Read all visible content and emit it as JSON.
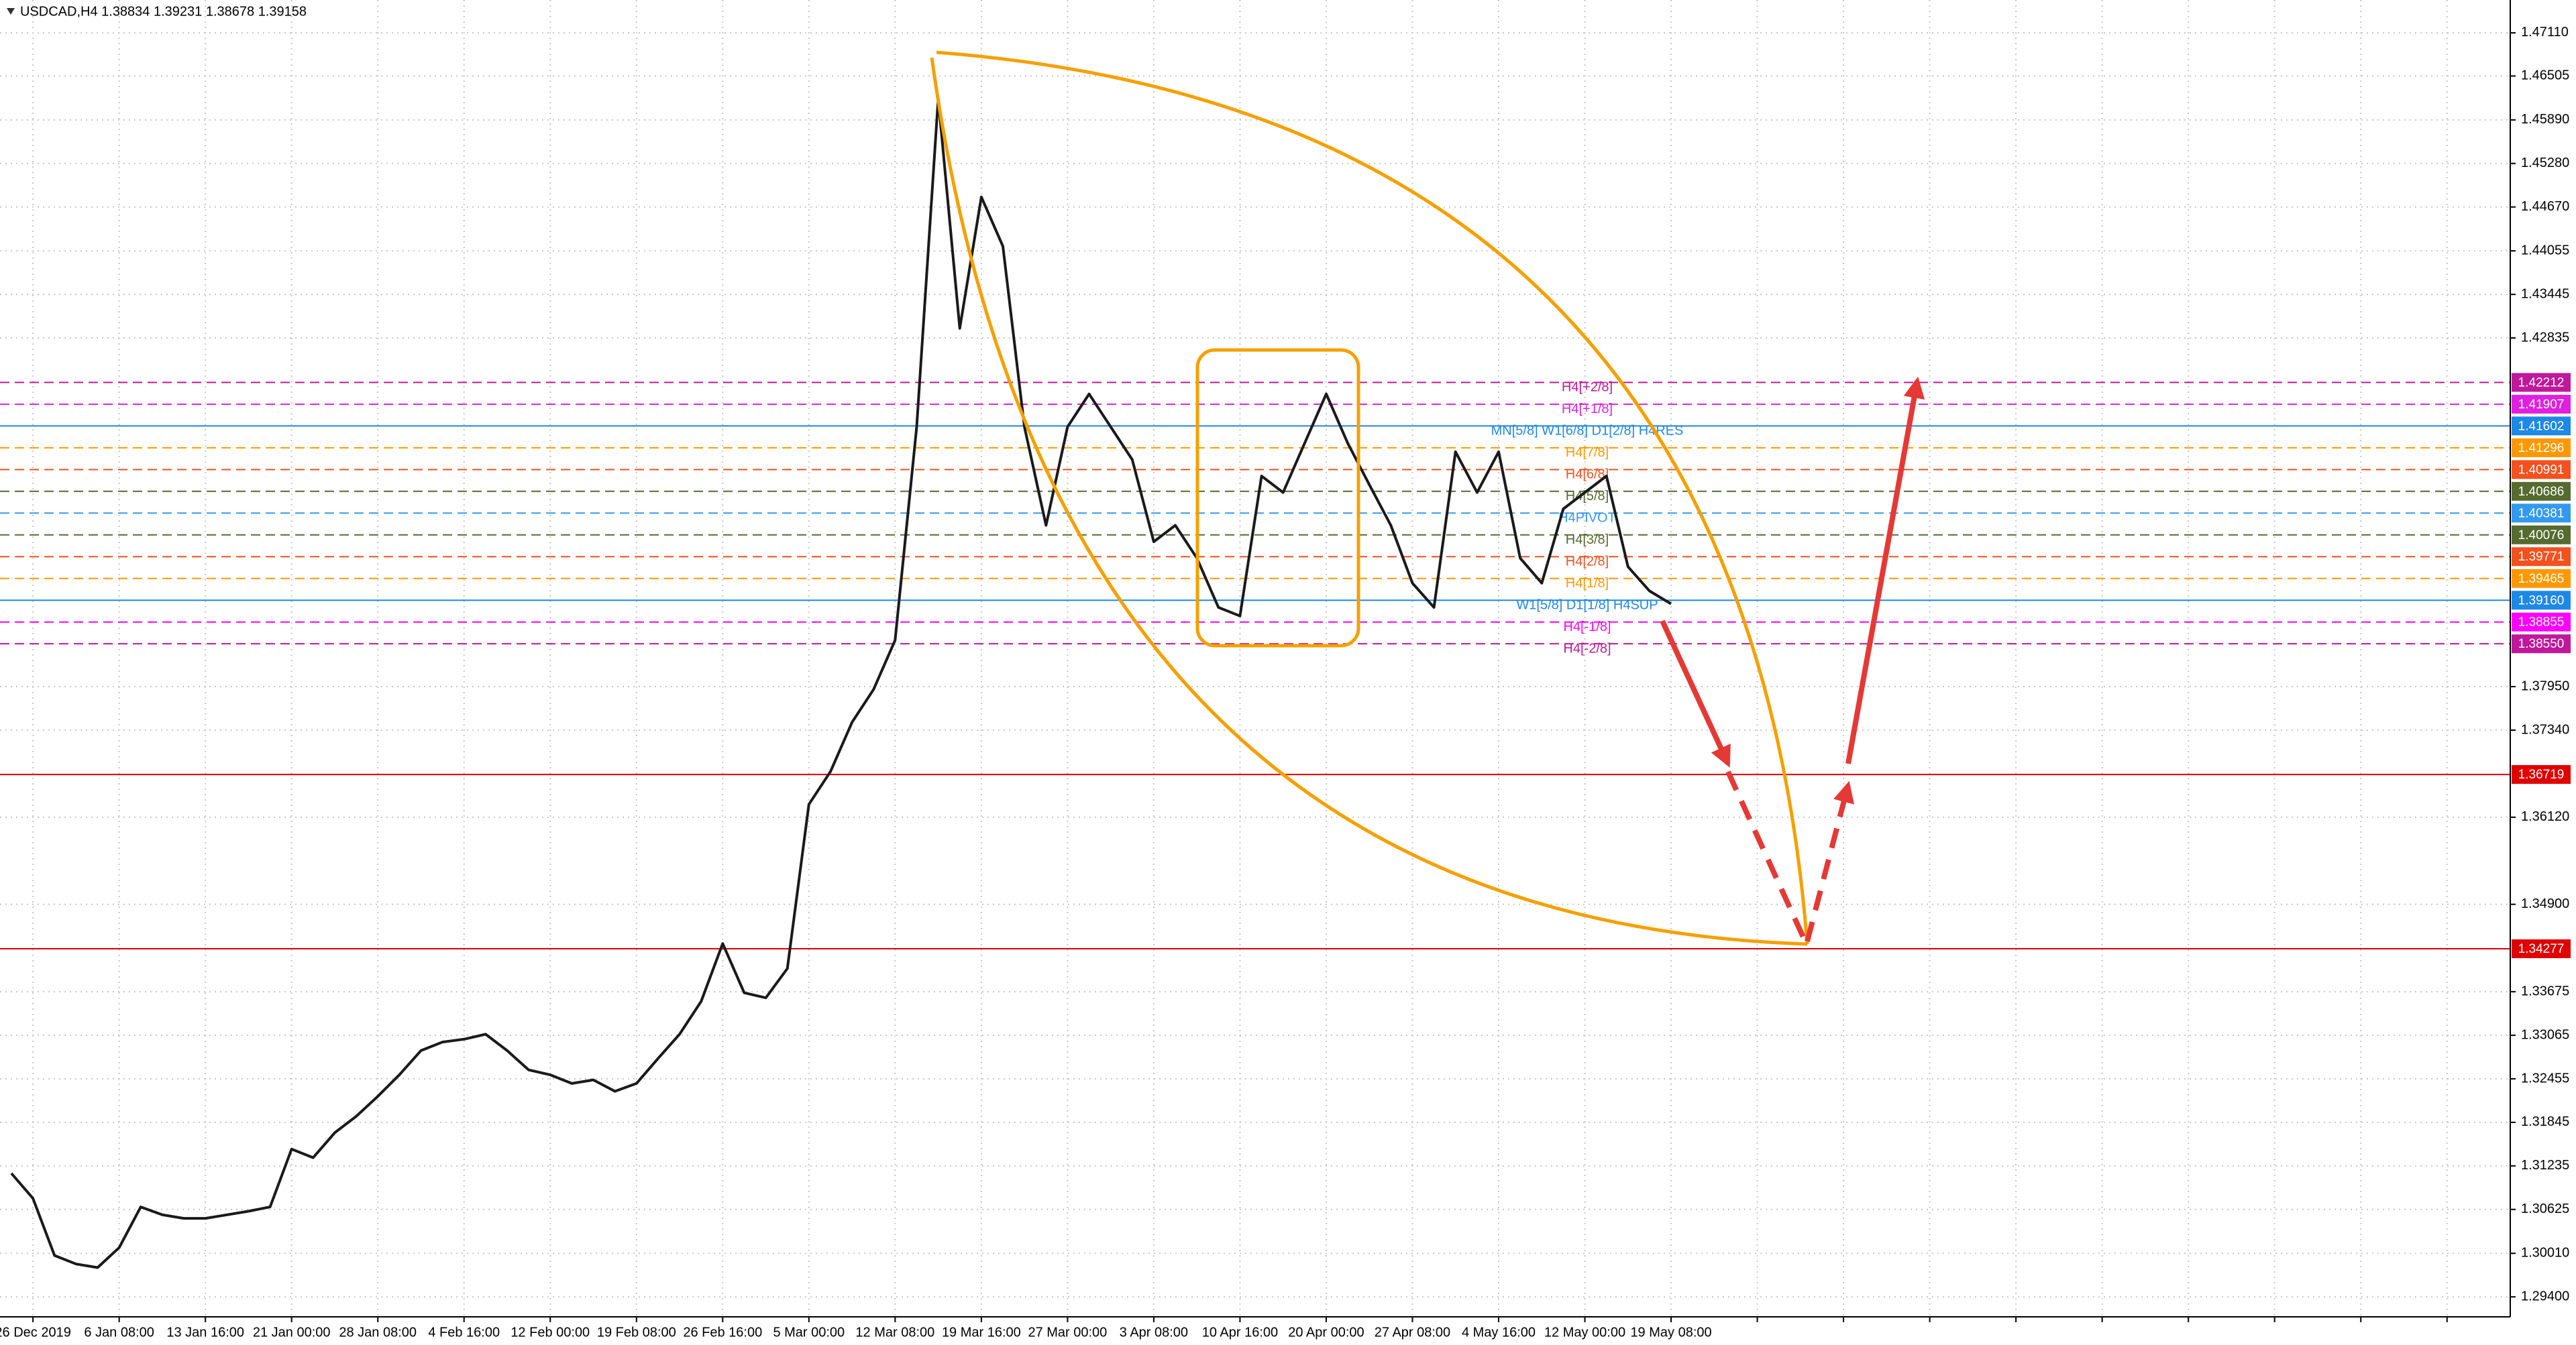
{
  "chart_data": {
    "type": "line",
    "title": "USDCAD,H4  1.38834 1.39231 1.38678 1.39158",
    "color": "#1a1a1a",
    "grid": true,
    "ylim": [
      1.2912,
      1.4757
    ],
    "yticks": [
      {
        "value": 1.4711,
        "label": "1.47110"
      },
      1.46505,
      {
        "value": 1.4589,
        "label": "1.45890"
      },
      {
        "value": 1.4528,
        "label": "1.45280"
      },
      {
        "value": 1.4467,
        "label": "1.44670"
      },
      1.44055,
      1.43445,
      1.42835,
      {
        "value": 1.3795,
        "label": "1.37950"
      },
      {
        "value": 1.3734,
        "label": "1.37340"
      },
      {
        "value": 1.3612,
        "label": "1.36120"
      },
      {
        "value": 1.349,
        "label": "1.34900"
      },
      1.33675,
      1.33065,
      1.32455,
      1.31845,
      1.31235,
      1.30625,
      {
        "value": 1.3001,
        "label": "1.30010"
      },
      {
        "value": 1.294,
        "label": "1.29400"
      }
    ],
    "categories": [
      null,
      "26 Dec 2019",
      null,
      null,
      null,
      "6 Jan 08:00",
      null,
      null,
      null,
      "13 Jan 16:00",
      null,
      null,
      null,
      "21 Jan 00:00",
      null,
      null,
      null,
      "28 Jan 08:00",
      null,
      null,
      null,
      "4 Feb 16:00",
      null,
      null,
      null,
      "12 Feb 00:00",
      null,
      null,
      null,
      "19 Feb 08:00",
      null,
      null,
      null,
      "26 Feb 16:00",
      null,
      null,
      null,
      "5 Mar 00:00",
      null,
      null,
      null,
      "12 Mar 08:00",
      null,
      null,
      null,
      "19 Mar 16:00",
      null,
      null,
      null,
      "27 Mar 00:00",
      null,
      null,
      null,
      "3 Apr 08:00",
      null,
      null,
      null,
      "10 Apr 16:00",
      null,
      null,
      null,
      "20 Apr 00:00",
      null,
      null,
      null,
      "27 Apr 08:00",
      null,
      null,
      null,
      "4 May 16:00",
      null,
      null,
      null,
      "12 May 00:00",
      null,
      null,
      null,
      "19 May 08:00",
      null,
      null,
      null,
      null,
      null,
      null,
      null,
      null,
      null,
      null,
      null,
      null,
      null,
      null,
      null,
      null,
      null,
      null,
      null,
      null,
      null,
      null,
      null,
      null,
      null,
      null,
      null,
      null,
      null,
      null,
      null,
      null,
      null,
      null,
      null,
      null,
      null,
      null
    ],
    "values": [
      1.3113,
      1.3078,
      1.2998,
      1.2986,
      1.2981,
      1.3009,
      1.3066,
      1.3055,
      1.305,
      1.305,
      1.3055,
      1.306,
      1.3066,
      1.3147,
      1.3135,
      1.317,
      1.3193,
      1.3221,
      1.3251,
      1.3285,
      1.3297,
      1.3301,
      1.3308,
      1.3285,
      1.3258,
      1.3251,
      1.3239,
      1.3244,
      1.3228,
      1.3239,
      1.3274,
      1.3308,
      1.3354,
      1.3435,
      1.3366,
      1.3359,
      1.34,
      1.363,
      1.3676,
      1.3745,
      1.3791,
      1.386,
      1.4159,
      1.4619,
      1.4297,
      1.4481,
      1.4412,
      1.4159,
      1.4021,
      1.4159,
      1.4205,
      1.4159,
      1.4113,
      1.3998,
      1.4021,
      1.3975,
      1.3906,
      1.3894,
      1.409,
      1.4067,
      1.4136,
      1.4205,
      1.4136,
      1.4078,
      1.4021,
      1.394,
      1.3906,
      1.4124,
      1.4067,
      1.4124,
      1.3975,
      1.394,
      1.4044,
      1.4067,
      1.409,
      1.3963,
      1.3929,
      1.3911,
      null,
      null,
      null,
      null,
      null,
      null,
      null,
      null,
      null,
      null,
      null,
      null,
      null,
      null,
      null,
      null,
      null,
      null,
      null,
      null,
      null,
      null,
      null,
      null,
      null,
      null,
      null,
      null,
      null,
      null,
      null,
      null,
      null,
      null,
      null,
      null,
      null,
      null
    ],
    "levels": [
      {
        "value": 1.42212,
        "name": "H4[+2/8]",
        "color": "#c0189b",
        "dashed": true
      },
      {
        "value": 1.41907,
        "name": "H4[+1/8]",
        "color": "#e020e0",
        "dashed": true
      },
      {
        "value": 1.41602,
        "name": "MN[5/8] W1[6/8] D1[2/8] H4RES",
        "color": "#1e88e5",
        "dashed": false
      },
      {
        "value": 1.41296,
        "name": "H4[7/8]",
        "color": "#ff9800",
        "dashed": true
      },
      {
        "value": 1.40991,
        "name": "H4[6/8]",
        "color": "#f4511e",
        "dashed": true
      },
      {
        "value": 1.40686,
        "name": "H4[5/8]",
        "color": "#556b2f",
        "dashed": true
      },
      {
        "value": 1.40381,
        "name": "H4PIVOT",
        "color": "#3399ee",
        "dashed": true
      },
      {
        "value": 1.40076,
        "name": "H4[3/8]",
        "color": "#556b2f",
        "dashed": true
      },
      {
        "value": 1.39771,
        "name": "H4[2/8]",
        "color": "#f4511e",
        "dashed": true
      },
      {
        "value": 1.39465,
        "name": "H4[1/8]",
        "color": "#ff9800",
        "dashed": true
      },
      {
        "value": 1.3916,
        "label": "1.39160",
        "name": "W1[5/8] D1[1/8] H4SUP",
        "color": "#1e88e5",
        "dashed": false
      },
      {
        "value": 1.38855,
        "name": "H4[-1/8]",
        "color": "#ff00ff",
        "dashed": true
      },
      {
        "value": 1.3855,
        "label": "1.38550",
        "name": "H4[-2/8]",
        "color": "#c0189b",
        "dashed": true
      },
      {
        "value": 1.36719,
        "color": "#e00000",
        "dashed": false
      },
      {
        "value": 1.34277,
        "color": "#e00000",
        "dashed": false
      }
    ]
  }
}
